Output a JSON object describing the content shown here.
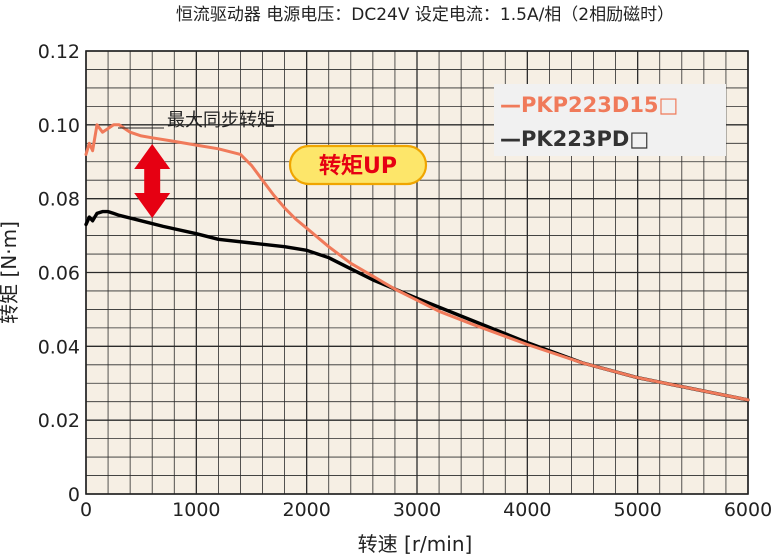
{
  "header": "恒流驱动器 电源电压：DC24V 设定电流：1.5A/相（2相励磁时）",
  "chart_data": {
    "type": "line",
    "xlabel": "转速 [r/min]",
    "ylabel": "转矩 [N·m]",
    "xlim": [
      0,
      6000
    ],
    "ylim": [
      0,
      0.12
    ],
    "x_ticks": [
      0,
      1000,
      2000,
      3000,
      4000,
      5000,
      6000
    ],
    "y_ticks": [
      0,
      0.02,
      0.04,
      0.06,
      0.08,
      0.1,
      0.12
    ],
    "x_tick_labels": [
      "0",
      "1000",
      "2000",
      "3000",
      "4000",
      "5000",
      "6000"
    ],
    "y_tick_labels": [
      "0",
      "0.02",
      "0.04",
      "0.06",
      "0.08",
      "0.10",
      "0.12"
    ],
    "grid": true,
    "legend_position": "top-right",
    "series": [
      {
        "name": "—PKP223D15□",
        "color": "#f07a5a",
        "legend_color": "#f07a5a",
        "x": [
          0,
          30,
          60,
          100,
          150,
          200,
          250,
          300,
          400,
          500,
          600,
          800,
          1000,
          1200,
          1400,
          1500,
          1600,
          1700,
          1800,
          1900,
          2000,
          2200,
          2400,
          2600,
          2800,
          3000,
          3200,
          3500,
          4000,
          4500,
          5000,
          5500,
          6000
        ],
        "y": [
          0.092,
          0.095,
          0.093,
          0.1,
          0.098,
          0.099,
          0.1,
          0.1,
          0.098,
          0.097,
          0.0965,
          0.0955,
          0.0945,
          0.0935,
          0.092,
          0.089,
          0.085,
          0.081,
          0.0775,
          0.0745,
          0.072,
          0.067,
          0.0625,
          0.059,
          0.0555,
          0.0525,
          0.0495,
          0.046,
          0.0405,
          0.0355,
          0.0315,
          0.0285,
          0.0255
        ]
      },
      {
        "name": "—PK223PD□",
        "color": "#000000",
        "legend_color": "#333333",
        "x": [
          0,
          30,
          60,
          100,
          150,
          200,
          250,
          300,
          500,
          700,
          1000,
          1200,
          1500,
          1800,
          2000,
          2200,
          2400,
          2600,
          2800,
          3000,
          3500,
          4000,
          4500,
          5000,
          5500,
          6000
        ],
        "y": [
          0.073,
          0.075,
          0.074,
          0.076,
          0.0765,
          0.0765,
          0.076,
          0.0755,
          0.074,
          0.0725,
          0.0705,
          0.069,
          0.068,
          0.067,
          0.066,
          0.064,
          0.061,
          0.058,
          0.0555,
          0.053,
          0.047,
          0.041,
          0.0355,
          0.0315,
          0.0285,
          0.0255
        ]
      }
    ],
    "annotations": {
      "max_sync_torque": "最大同步转矩",
      "badge": "转矩UP"
    }
  }
}
